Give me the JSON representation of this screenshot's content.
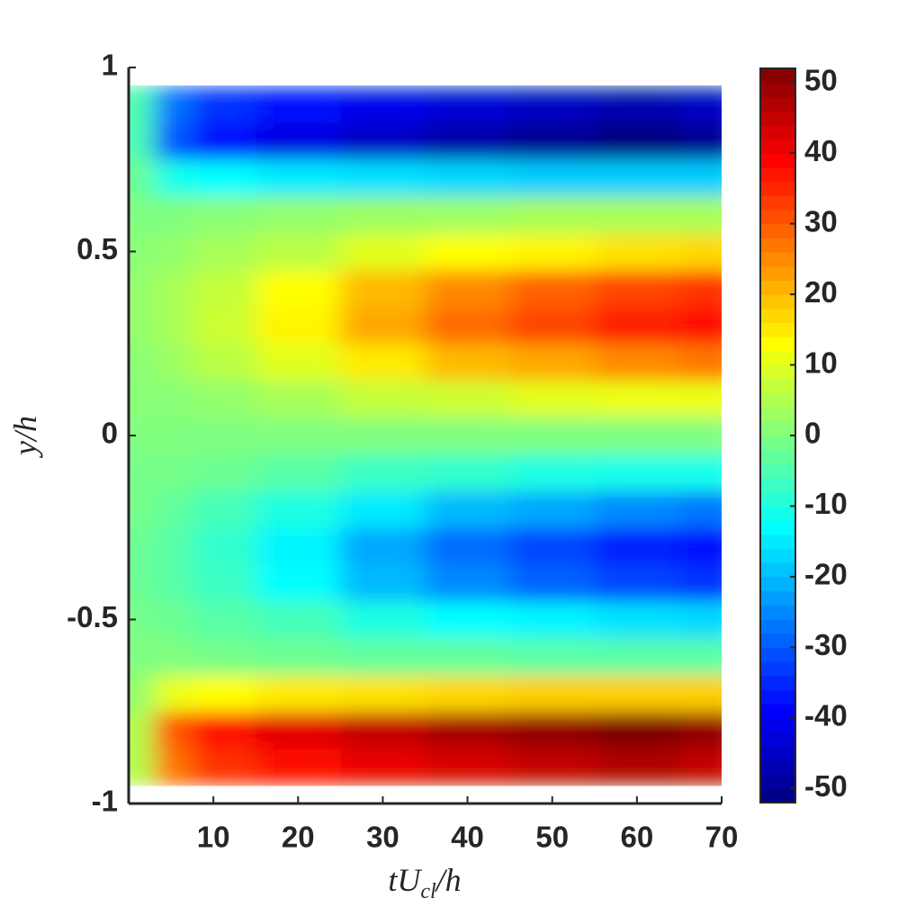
{
  "chart_data": {
    "type": "contour",
    "xlabel": {
      "main": "tU",
      "sub": "cl",
      "rest": "/h"
    },
    "ylabel": "y/h",
    "x": [
      1,
      5,
      10,
      20,
      30,
      40,
      50,
      60,
      70
    ],
    "y": [
      -1,
      -0.9,
      -0.8,
      -0.7,
      -0.6,
      -0.5,
      -0.4,
      -0.3,
      -0.2,
      -0.1,
      0,
      0.1,
      0.2,
      0.3,
      0.4,
      0.5,
      0.6,
      0.7,
      0.8,
      0.9,
      1
    ],
    "z": [
      [
        0,
        0,
        0,
        0,
        0,
        0,
        0,
        0,
        0
      ],
      [
        5,
        27,
        34,
        38,
        41,
        43,
        45,
        47,
        45
      ],
      [
        5,
        30,
        38,
        42,
        45,
        48,
        50,
        52,
        50
      ],
      [
        2,
        11,
        13,
        15,
        16,
        17,
        18,
        18,
        18
      ],
      [
        0,
        0,
        -1,
        -2,
        -3,
        -3,
        -4,
        -4,
        -4
      ],
      [
        -1,
        -2,
        -4,
        -6,
        -10,
        -13,
        -14,
        -16,
        -17
      ],
      [
        -2,
        -4,
        -7,
        -13,
        -20,
        -25,
        -29,
        -32,
        -34
      ],
      [
        -2,
        -4,
        -8,
        -14,
        -22,
        -28,
        -32,
        -36,
        -38
      ],
      [
        -1,
        -3,
        -6,
        -10,
        -15,
        -20,
        -22,
        -25,
        -27
      ],
      [
        -1,
        -1,
        -2,
        -4,
        -7,
        -8,
        -10,
        -11,
        -11
      ],
      [
        0,
        0,
        0,
        0,
        0,
        0,
        0,
        0,
        0
      ],
      [
        1,
        1,
        2,
        4,
        7,
        8,
        10,
        11,
        11
      ],
      [
        1,
        3,
        6,
        10,
        15,
        20,
        22,
        25,
        27
      ],
      [
        2,
        4,
        8,
        14,
        22,
        28,
        32,
        36,
        38
      ],
      [
        2,
        4,
        7,
        13,
        20,
        25,
        29,
        32,
        34
      ],
      [
        1,
        2,
        4,
        6,
        10,
        13,
        14,
        16,
        17
      ],
      [
        0,
        0,
        1,
        2,
        3,
        3,
        4,
        4,
        4
      ],
      [
        -2,
        -11,
        -13,
        -15,
        -16,
        -17,
        -18,
        -18,
        -18
      ],
      [
        -5,
        -30,
        -38,
        -42,
        -45,
        -48,
        -50,
        -52,
        -50
      ],
      [
        -5,
        -27,
        -34,
        -38,
        -41,
        -43,
        -45,
        -47,
        -45
      ],
      [
        0,
        0,
        0,
        0,
        0,
        0,
        0,
        0,
        0
      ]
    ],
    "xlim": [
      0,
      70
    ],
    "xticks": [
      10,
      20,
      30,
      40,
      50,
      60,
      70
    ],
    "ylim": [
      -1,
      1
    ],
    "yticks": [
      -1,
      -0.5,
      0,
      0.5,
      1
    ],
    "colormap": "jet",
    "clim": [
      -52,
      52
    ],
    "cticks": [
      -50,
      -40,
      -30,
      -20,
      -10,
      0,
      10,
      20,
      30,
      40,
      50
    ]
  }
}
